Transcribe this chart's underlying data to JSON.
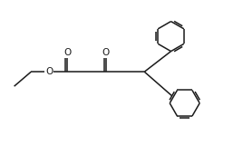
{
  "background_color": "#ffffff",
  "line_color": "#1a1a1a",
  "line_width": 1.1,
  "figure_width": 2.68,
  "figure_height": 1.61,
  "dpi": 100,
  "xlim": [
    0,
    10
  ],
  "ylim": [
    0,
    6
  ]
}
